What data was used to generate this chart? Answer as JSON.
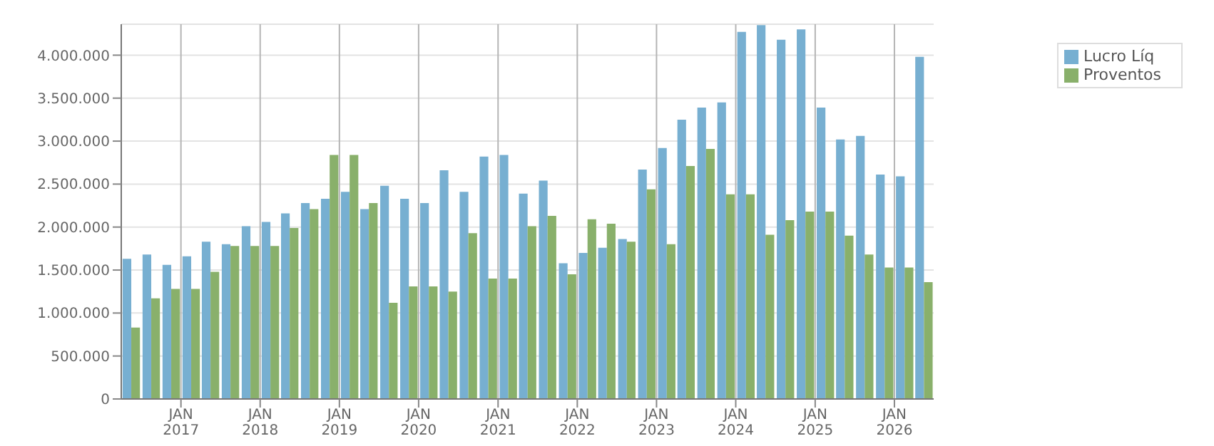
{
  "chart_data": {
    "type": "bar",
    "x": [
      "2016-05-15",
      "2016-08-15",
      "2016-11-15",
      "2017-02-15",
      "2017-05-15",
      "2017-08-15",
      "2017-11-15",
      "2018-02-15",
      "2018-05-15",
      "2018-08-15",
      "2018-11-15",
      "2019-02-15",
      "2019-05-15",
      "2019-08-15",
      "2019-11-15",
      "2020-02-15",
      "2020-05-15",
      "2020-08-15",
      "2020-11-15",
      "2021-02-15",
      "2021-05-15",
      "2021-08-15",
      "2021-11-15",
      "2022-02-15",
      "2022-05-15",
      "2022-08-15",
      "2022-11-15",
      "2023-02-15",
      "2023-05-15",
      "2023-08-15",
      "2023-11-15",
      "2024-02-15",
      "2024-05-15",
      "2024-08-15",
      "2024-11-15",
      "2025-02-15",
      "2025-05-15",
      "2025-08-15",
      "2025-11-15",
      "2026-02-15",
      "2026-05-15"
    ],
    "series": [
      {
        "name": "Lucro Líq",
        "color": "#77afd1",
        "values": [
          1630000,
          1680000,
          1560000,
          1660000,
          1830000,
          1800000,
          2010000,
          2060000,
          2160000,
          2280000,
          2330000,
          2410000,
          2210000,
          2480000,
          2330000,
          2280000,
          2660000,
          2410000,
          2820000,
          2840000,
          2390000,
          2540000,
          1580000,
          1700000,
          1760000,
          1860000,
          2670000,
          2920000,
          3250000,
          3390000,
          3450000,
          4270000,
          4350000,
          4180000,
          4300000,
          3390000,
          3020000,
          3060000,
          2610000,
          2590000,
          3980000
        ]
      },
      {
        "name": "Proventos",
        "color": "#89b06b",
        "values": [
          830000,
          1170000,
          1280000,
          1280000,
          1480000,
          1780000,
          1780000,
          1780000,
          1990000,
          2210000,
          2840000,
          2840000,
          2280000,
          1120000,
          1310000,
          1310000,
          1250000,
          1930000,
          1400000,
          1400000,
          2010000,
          2130000,
          1450000,
          2090000,
          2040000,
          1830000,
          2440000,
          1800000,
          2710000,
          2910000,
          2380000,
          2380000,
          1910000,
          2080000,
          2180000,
          2180000,
          1900000,
          1680000,
          1530000,
          1530000,
          1360000
        ]
      }
    ],
    "xlim": [
      "2016-04-01",
      "2026-07-01"
    ],
    "xticks": [
      {
        "value": "2017-01-01",
        "label": "JAN\n2017"
      },
      {
        "value": "2018-01-01",
        "label": "JAN\n2018"
      },
      {
        "value": "2019-01-01",
        "label": "JAN\n2019"
      },
      {
        "value": "2020-01-01",
        "label": "JAN\n2020"
      },
      {
        "value": "2021-01-01",
        "label": "JAN\n2021"
      },
      {
        "value": "2022-01-01",
        "label": "JAN\n2022"
      },
      {
        "value": "2023-01-01",
        "label": "JAN\n2023"
      },
      {
        "value": "2024-01-01",
        "label": "JAN\n2024"
      },
      {
        "value": "2025-01-01",
        "label": "JAN\n2025"
      },
      {
        "value": "2026-01-01",
        "label": "JAN\n2026"
      }
    ],
    "ylim": [
      0,
      4360000
    ],
    "yticks": [
      {
        "value": 0,
        "label": "0"
      },
      {
        "value": 500000,
        "label": "500.000"
      },
      {
        "value": 1000000,
        "label": "1.000.000"
      },
      {
        "value": 1500000,
        "label": "1.500.000"
      },
      {
        "value": 2000000,
        "label": "2.000.000"
      },
      {
        "value": 2500000,
        "label": "2.500.000"
      },
      {
        "value": 3000000,
        "label": "3.000.000"
      },
      {
        "value": 3500000,
        "label": "3.500.000"
      },
      {
        "value": 4000000,
        "label": "4.000.000"
      }
    ],
    "grid": true,
    "legend": "right"
  }
}
